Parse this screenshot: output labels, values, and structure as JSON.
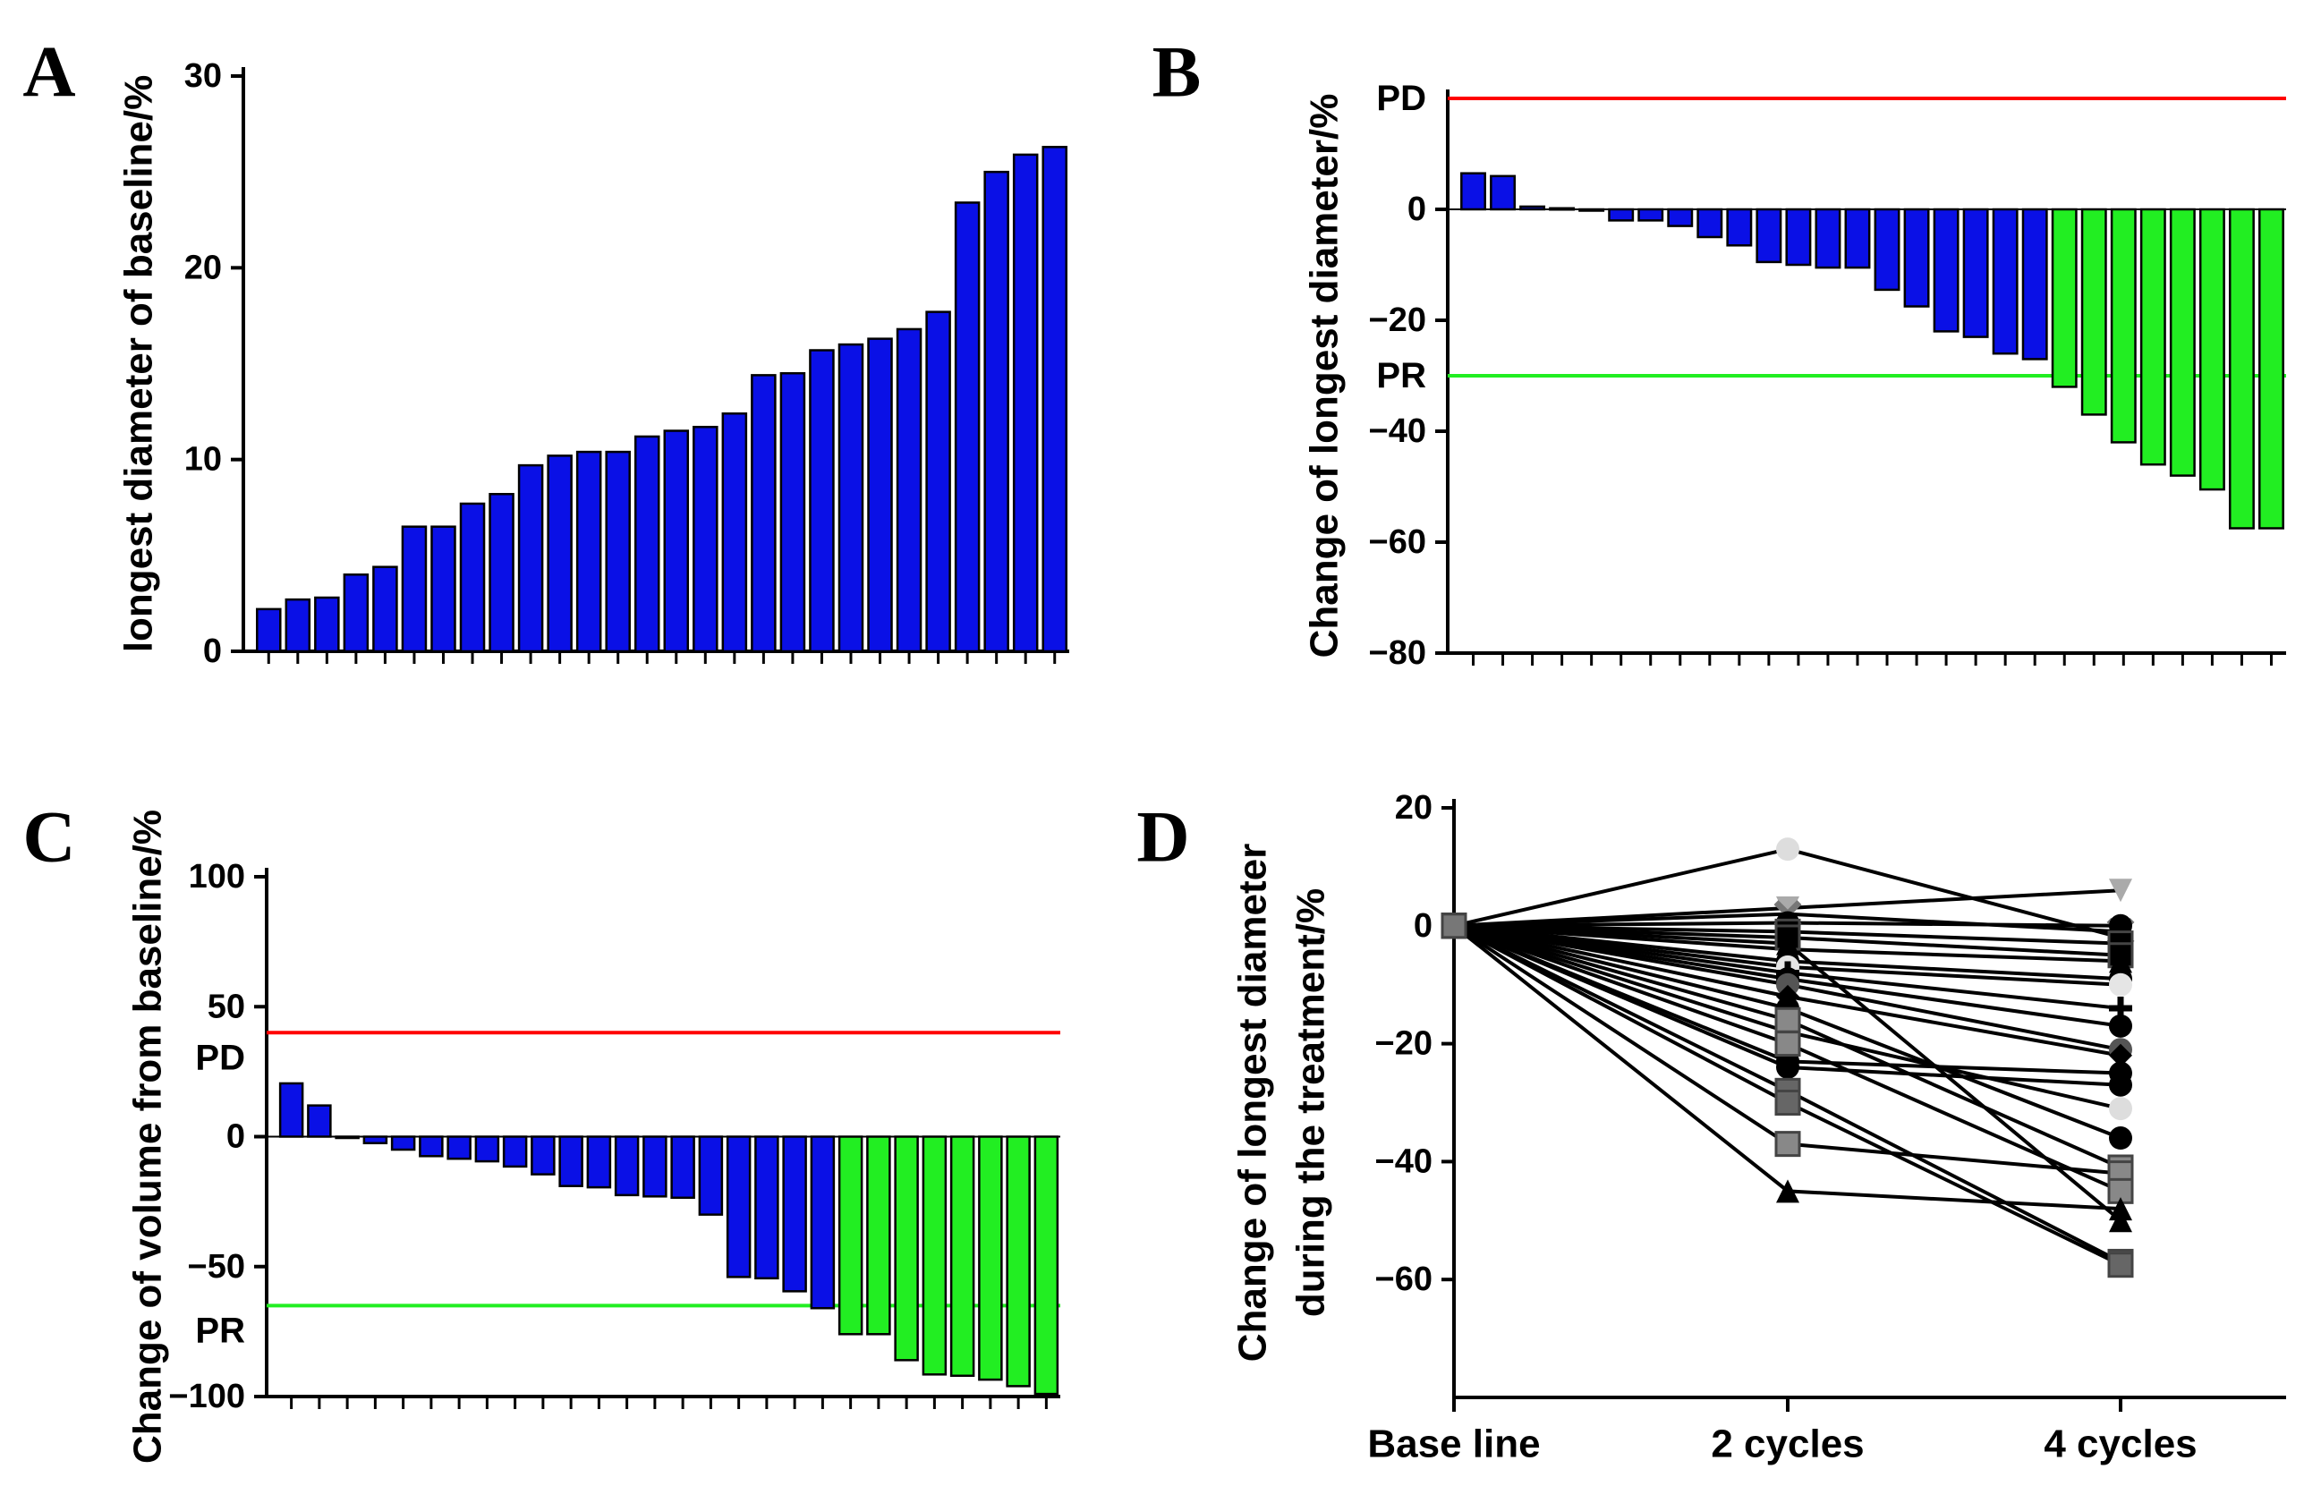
{
  "colors": {
    "blue": "#0a10e6",
    "green": "#22ee22",
    "red": "#ff0000",
    "axis": "#000000"
  },
  "chart_data": [
    {
      "panel": "A",
      "type": "bar",
      "ylabel": "longest diameter of baseline/%",
      "ylim": [
        0,
        30
      ],
      "yticks": [
        "0",
        "10",
        "20",
        "30"
      ],
      "values": [
        2.2,
        2.7,
        2.8,
        4.0,
        4.4,
        6.5,
        6.5,
        7.7,
        8.2,
        9.7,
        10.2,
        10.4,
        10.4,
        11.2,
        11.5,
        11.7,
        12.4,
        14.4,
        14.5,
        15.7,
        16.0,
        16.3,
        16.8,
        17.7,
        23.4,
        25.0,
        25.9,
        26.3
      ],
      "colors": [
        "blue",
        "blue",
        "blue",
        "blue",
        "blue",
        "blue",
        "blue",
        "blue",
        "blue",
        "blue",
        "blue",
        "blue",
        "blue",
        "blue",
        "blue",
        "blue",
        "blue",
        "blue",
        "blue",
        "blue",
        "blue",
        "blue",
        "blue",
        "blue",
        "blue",
        "blue",
        "blue",
        "blue"
      ]
    },
    {
      "panel": "B",
      "type": "bar",
      "ylabel": "Change of longest diameter/%",
      "ylim": [
        -80,
        20
      ],
      "yticks": [
        "0",
        "−20",
        "−40",
        "−60",
        "−80"
      ],
      "ref_lines": [
        {
          "label": "PD",
          "value": 20,
          "color": "red"
        },
        {
          "label": "PR",
          "value": -30,
          "color": "green"
        }
      ],
      "values": [
        6.5,
        6.0,
        0.5,
        0.2,
        0,
        -2,
        -2,
        -3,
        -5,
        -6.5,
        -9.5,
        -10,
        -10.5,
        -10.5,
        -14.5,
        -17.5,
        -22,
        -23,
        -26,
        -27,
        -32,
        -37,
        -42,
        -46,
        -48,
        -50.5,
        -57.5,
        -57.5
      ],
      "colors": [
        "blue",
        "blue",
        "blue",
        "blue",
        "blue",
        "blue",
        "blue",
        "blue",
        "blue",
        "blue",
        "blue",
        "blue",
        "blue",
        "blue",
        "blue",
        "blue",
        "blue",
        "blue",
        "blue",
        "blue",
        "green",
        "green",
        "green",
        "green",
        "green",
        "green",
        "green",
        "green"
      ]
    },
    {
      "panel": "C",
      "type": "bar",
      "ylabel": "Change of volume from baseline/%",
      "ylim": [
        -100,
        100
      ],
      "yticks": [
        "100",
        "50",
        "0",
        "−50",
        "−100"
      ],
      "ref_lines": [
        {
          "label": "PD",
          "value": 40,
          "color": "red"
        },
        {
          "label": "PR",
          "value": -65,
          "color": "green"
        }
      ],
      "values": [
        20.5,
        12,
        0,
        -2.5,
        -5,
        -7.5,
        -8.5,
        -9.5,
        -11.5,
        -14.5,
        -19,
        -19.5,
        -22.5,
        -23,
        -23.5,
        -30,
        -54,
        -54.5,
        -59.5,
        -66,
        -76,
        -76,
        -86,
        -91.5,
        -92,
        -93.5,
        -96,
        -99
      ],
      "colors": [
        "blue",
        "blue",
        "blue",
        "blue",
        "blue",
        "blue",
        "blue",
        "blue",
        "blue",
        "blue",
        "blue",
        "blue",
        "blue",
        "blue",
        "blue",
        "blue",
        "blue",
        "blue",
        "blue",
        "blue",
        "green",
        "green",
        "green",
        "green",
        "green",
        "green",
        "green",
        "green"
      ]
    },
    {
      "panel": "D",
      "type": "line",
      "ylabel": "Change of longest diameter during the treatment/%",
      "ylabel_lines": [
        "Change of longest diameter",
        "during the treatment/%"
      ],
      "ylim": [
        -80,
        20
      ],
      "yticks": [
        "20",
        "0",
        "−20",
        "−40",
        "−60"
      ],
      "categories": [
        "Base line",
        "2 cycles",
        "4 cycles"
      ],
      "series": [
        {
          "values": [
            0,
            13,
            -2
          ],
          "marker": "circle",
          "color": "#dddddd"
        },
        {
          "values": [
            0,
            3,
            6
          ],
          "marker": "triangle-down",
          "color": "#aaaaaa"
        },
        {
          "values": [
            0,
            2,
            -1
          ],
          "marker": "cross",
          "color": "#777777"
        },
        {
          "values": [
            0,
            0.5,
            0
          ],
          "marker": "circle",
          "color": "#000000"
        },
        {
          "values": [
            0,
            -1,
            -3
          ],
          "marker": "square",
          "color": "#000000"
        },
        {
          "values": [
            0,
            -2,
            -5
          ],
          "marker": "square",
          "color": "#000000"
        },
        {
          "values": [
            0,
            -4,
            -6
          ],
          "marker": "triangle",
          "color": "#000000"
        },
        {
          "values": [
            0,
            -6,
            -9
          ],
          "marker": "circle",
          "color": "#000000"
        },
        {
          "values": [
            0,
            -7,
            -10
          ],
          "marker": "circle",
          "color": "#e5e5e5"
        },
        {
          "values": [
            0,
            -8,
            -14
          ],
          "marker": "plus",
          "color": "#000000"
        },
        {
          "values": [
            0,
            -9,
            -17
          ],
          "marker": "circle",
          "color": "#000000"
        },
        {
          "values": [
            0,
            -10,
            -21
          ],
          "marker": "circle",
          "color": "#555555"
        },
        {
          "values": [
            0,
            -12,
            -22
          ],
          "marker": "diamond",
          "color": "#000000"
        },
        {
          "values": [
            0,
            -23,
            -25
          ],
          "marker": "circle",
          "color": "#000000"
        },
        {
          "values": [
            0,
            -24,
            -27
          ],
          "marker": "circle",
          "color": "#000000"
        },
        {
          "values": [
            0,
            -18,
            -31
          ],
          "marker": "circle",
          "color": "#dddddd"
        },
        {
          "values": [
            0,
            -14,
            -36
          ],
          "marker": "circle",
          "color": "#000000"
        },
        {
          "values": [
            0,
            -16,
            -41
          ],
          "marker": "square",
          "color": "#888888"
        },
        {
          "values": [
            0,
            -37,
            -42
          ],
          "marker": "square",
          "color": "#888888"
        },
        {
          "values": [
            0,
            -20,
            -45
          ],
          "marker": "square",
          "color": "#888888"
        },
        {
          "values": [
            0,
            -45,
            -48
          ],
          "marker": "triangle",
          "color": "#000000"
        },
        {
          "values": [
            0,
            -3,
            -50
          ],
          "marker": "triangle",
          "color": "#000000"
        },
        {
          "values": [
            0,
            -28,
            -57
          ],
          "marker": "square",
          "color": "#666666"
        },
        {
          "values": [
            0,
            -30,
            -57.5
          ],
          "marker": "square",
          "color": "#666666"
        }
      ]
    }
  ]
}
